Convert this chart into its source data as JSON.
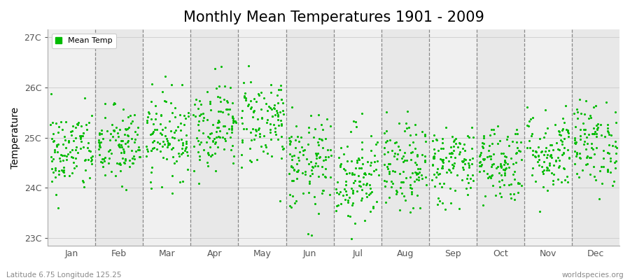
{
  "title": "Monthly Mean Temperatures 1901 - 2009",
  "ylabel": "Temperature",
  "xlabel_labels": [
    "Jan",
    "Feb",
    "Mar",
    "Apr",
    "May",
    "Jun",
    "Jul",
    "Aug",
    "Sep",
    "Oct",
    "Nov",
    "Dec"
  ],
  "ytick_labels": [
    "23C",
    "24C",
    "25C",
    "26C",
    "27C"
  ],
  "ytick_values": [
    23,
    24,
    25,
    26,
    27
  ],
  "ylim": [
    22.85,
    27.15
  ],
  "dot_color": "#00bb00",
  "dot_size": 5,
  "legend_label": "Mean Temp",
  "footer_left": "Latitude 6.75 Longitude 125.25",
  "footer_right": "worldspecies.org",
  "background_color": "#ffffff",
  "plot_bg_color": "#ffffff",
  "band_color_light": "#f0f0f0",
  "band_color_dark": "#e8e8e8",
  "title_fontsize": 15,
  "n_years": 109,
  "monthly_means": [
    24.72,
    24.82,
    25.05,
    25.25,
    25.35,
    24.45,
    24.25,
    24.38,
    24.48,
    24.52,
    24.72,
    24.88
  ],
  "monthly_stds": [
    0.42,
    0.4,
    0.42,
    0.44,
    0.46,
    0.48,
    0.5,
    0.44,
    0.4,
    0.4,
    0.42,
    0.42
  ]
}
